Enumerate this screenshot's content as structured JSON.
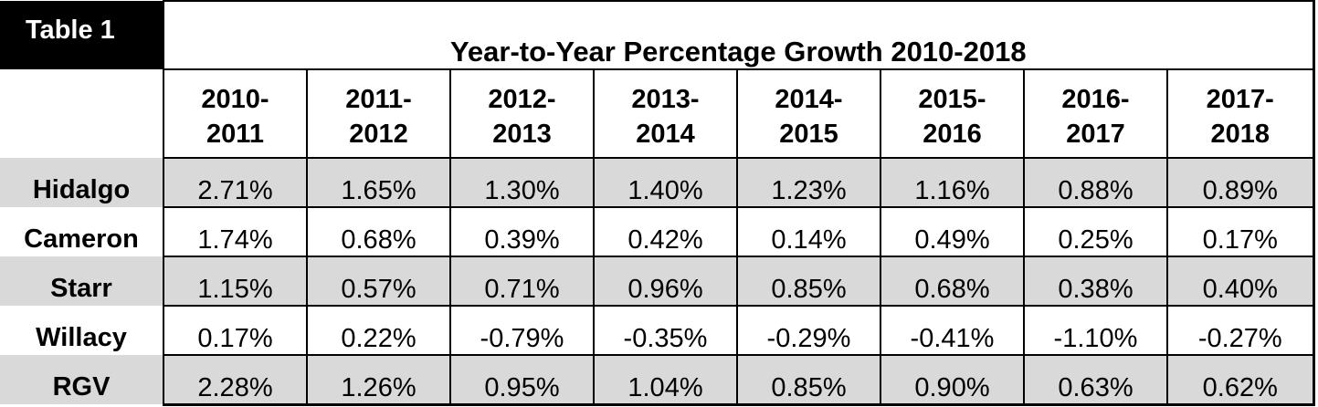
{
  "table": {
    "tag": "Table 1",
    "title": "Year-to-Year Percentage Growth 2010-2018",
    "periods": [
      [
        "2010-",
        "2011"
      ],
      [
        "2011-",
        "2012"
      ],
      [
        "2012-",
        "2013"
      ],
      [
        "2013-",
        "2014"
      ],
      [
        "2014-",
        "2015"
      ],
      [
        "2015-",
        "2016"
      ],
      [
        "2016-",
        "2017"
      ],
      [
        "2017-",
        "2018"
      ]
    ],
    "rows": [
      {
        "name": "Hidalgo",
        "values": [
          "2.71%",
          "1.65%",
          "1.30%",
          "1.40%",
          "1.23%",
          "1.16%",
          "0.88%",
          "0.89%"
        ]
      },
      {
        "name": "Cameron",
        "values": [
          "1.74%",
          "0.68%",
          "0.39%",
          "0.42%",
          "0.14%",
          "0.49%",
          "0.25%",
          "0.17%"
        ]
      },
      {
        "name": "Starr",
        "values": [
          "1.15%",
          "0.57%",
          "0.71%",
          "0.96%",
          "0.85%",
          "0.68%",
          "0.38%",
          "0.40%"
        ]
      },
      {
        "name": "Willacy",
        "values": [
          "0.17%",
          "0.22%",
          "-0.79%",
          "-0.35%",
          "-0.29%",
          "-0.41%",
          "-1.10%",
          "-0.27%"
        ]
      },
      {
        "name": "RGV",
        "values": [
          "2.28%",
          "1.26%",
          "0.95%",
          "1.04%",
          "0.85%",
          "0.90%",
          "0.63%",
          "0.62%"
        ]
      }
    ],
    "shaded_rows": [
      0,
      2,
      4
    ],
    "colors": {
      "tag_bg": "#000000",
      "tag_fg": "#ffffff",
      "shade": "#d9d9d9"
    }
  }
}
